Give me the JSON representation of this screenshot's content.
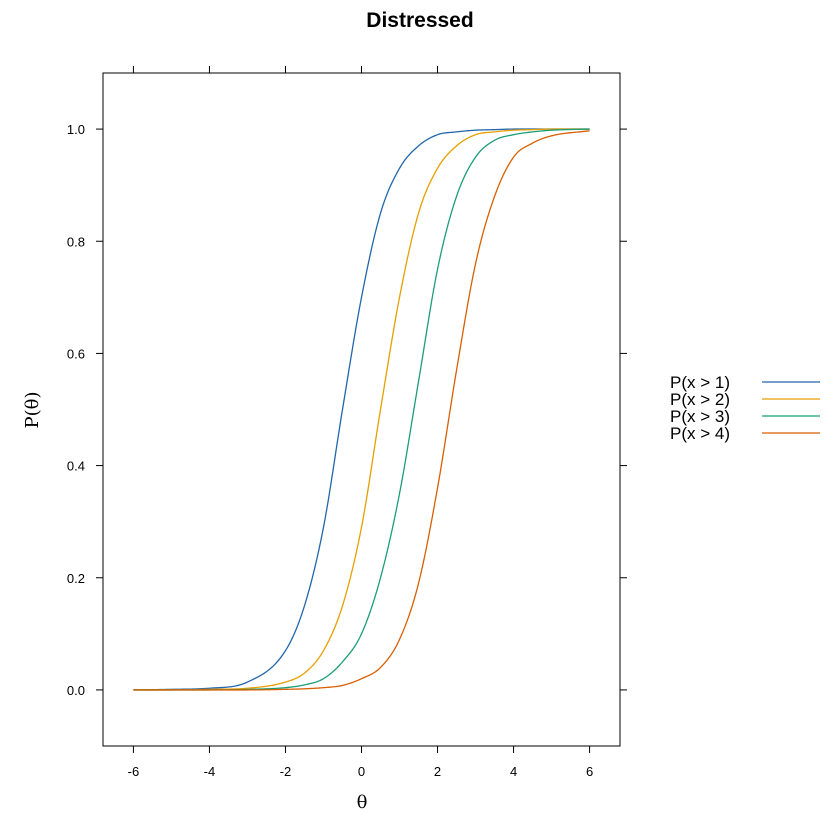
{
  "chart_data": {
    "type": "line",
    "title": "Distressed",
    "xlabel": "θ",
    "ylabel": "P(θ)",
    "xlim": [
      -6.8,
      6.8
    ],
    "ylim": [
      -0.1,
      1.1
    ],
    "xticks": [
      "-6",
      "-4",
      "-2",
      "0",
      "2",
      "4",
      "6"
    ],
    "yticks": [
      "0.0",
      "0.2",
      "0.4",
      "0.6",
      "0.8",
      "1.0"
    ],
    "grid": false,
    "legend_position": "right",
    "x": [
      -6,
      -5,
      -4,
      -3,
      -2,
      -1.5,
      -1,
      -0.5,
      0,
      0.5,
      1,
      1.5,
      2,
      2.5,
      3,
      3.5,
      4,
      4.5,
      5,
      6
    ],
    "series": [
      {
        "name": "P(x > 1)",
        "color": "#2166ac",
        "values": [
          0.0,
          0.001,
          0.003,
          0.014,
          0.07,
          0.15,
          0.29,
          0.5,
          0.7,
          0.85,
          0.93,
          0.97,
          0.99,
          0.995,
          0.998,
          0.999,
          1.0,
          1.0,
          1.0,
          1.0
        ]
      },
      {
        "name": "P(x > 2)",
        "color": "#e69f00",
        "values": [
          0.0,
          0.0,
          0.001,
          0.003,
          0.014,
          0.03,
          0.07,
          0.15,
          0.29,
          0.5,
          0.7,
          0.85,
          0.93,
          0.97,
          0.99,
          0.995,
          0.998,
          0.999,
          1.0,
          1.0
        ]
      },
      {
        "name": "P(x > 3)",
        "color": "#1b9e77",
        "values": [
          0.0,
          0.0,
          0.0,
          0.001,
          0.004,
          0.009,
          0.02,
          0.05,
          0.1,
          0.2,
          0.35,
          0.55,
          0.75,
          0.88,
          0.95,
          0.98,
          0.99,
          0.995,
          0.998,
          1.0
        ]
      },
      {
        "name": "P(x > 4)",
        "color": "#d95f02",
        "values": [
          0.0,
          0.0,
          0.0,
          0.0,
          0.001,
          0.002,
          0.004,
          0.008,
          0.02,
          0.04,
          0.09,
          0.19,
          0.36,
          0.57,
          0.76,
          0.88,
          0.95,
          0.975,
          0.988,
          0.997
        ]
      }
    ]
  }
}
